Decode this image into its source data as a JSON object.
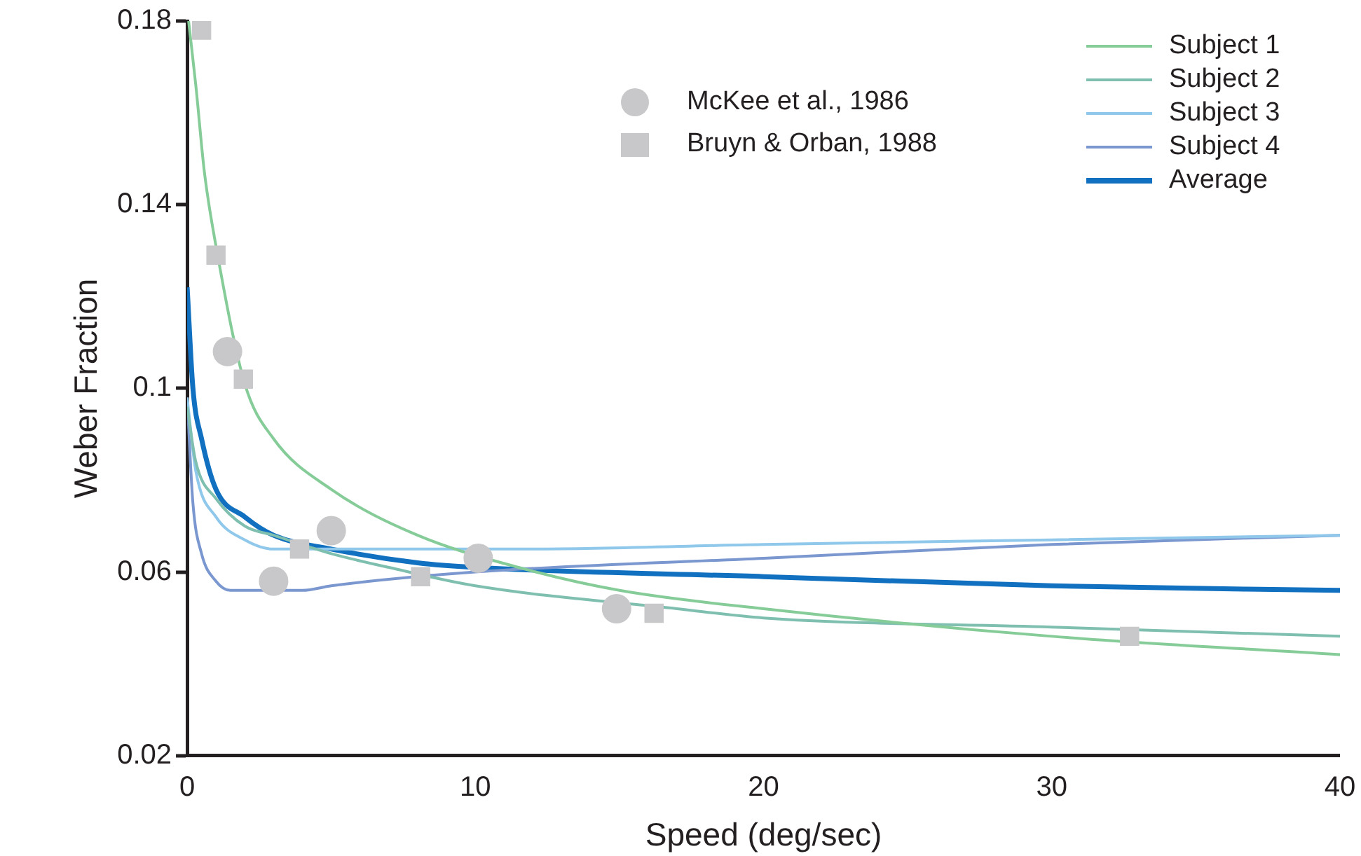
{
  "chart_data": {
    "type": "line",
    "xlabel": "Speed (deg/sec)",
    "ylabel": "Weber Fraction",
    "xlim": [
      0,
      40
    ],
    "xticks": [
      0,
      10,
      20,
      30,
      40
    ],
    "ylim": [
      0.02,
      0.18
    ],
    "yticks": [
      0.02,
      0.06,
      0.1,
      0.14,
      0.18
    ],
    "grid": false,
    "legend": "top right",
    "series": [
      {
        "name": "McKee et al., 1986",
        "type": "scatter",
        "marker": "circle",
        "color": "#c8c8ca",
        "x": [
          1.4,
          3.0,
          5.0,
          10.1,
          14.9
        ],
        "values": [
          0.108,
          0.058,
          0.069,
          0.063,
          0.052
        ]
      },
      {
        "name": "Bruyn & Orban, 1988",
        "type": "scatter",
        "marker": "square",
        "color": "#c8c8ca",
        "x": [
          0.5,
          1.0,
          1.95,
          3.9,
          8.1,
          16.2,
          32.7
        ],
        "values": [
          0.178,
          0.129,
          0.102,
          0.065,
          0.059,
          0.051,
          0.046
        ]
      },
      {
        "name": "Subject 1",
        "color": "#86cc98",
        "x": [
          0.05,
          0.3,
          0.6,
          1,
          2,
          3,
          5,
          8,
          11.5,
          15,
          20,
          30,
          40
        ],
        "values": [
          0.18,
          0.166,
          0.147,
          0.131,
          0.101,
          0.089,
          0.078,
          0.068,
          0.061,
          0.056,
          0.052,
          0.046,
          0.042
        ]
      },
      {
        "name": "Subject 2",
        "color": "#7fbfb0",
        "x": [
          0,
          0.3,
          1,
          2,
          3,
          5,
          7,
          10,
          17,
          20,
          30,
          40
        ],
        "values": [
          0.096,
          0.084,
          0.076,
          0.07,
          0.068,
          0.064,
          0.061,
          0.057,
          0.052,
          0.05,
          0.048,
          0.046
        ]
      },
      {
        "name": "Subject 3",
        "color": "#8fc8ea",
        "x": [
          0,
          0.3,
          1,
          2,
          3,
          5,
          12,
          20,
          30,
          40
        ],
        "values": [
          0.098,
          0.082,
          0.072,
          0.067,
          0.065,
          0.065,
          0.065,
          0.066,
          0.067,
          0.068
        ]
      },
      {
        "name": "Subject 4",
        "color": "#7b97cf",
        "x": [
          0,
          0.2,
          0.5,
          1,
          1.5,
          2,
          4,
          5,
          10,
          20,
          30,
          40
        ],
        "values": [
          0.098,
          0.075,
          0.064,
          0.058,
          0.056,
          0.056,
          0.056,
          0.057,
          0.06,
          0.063,
          0.066,
          0.068
        ]
      },
      {
        "name": "Average",
        "color": "#1170c0",
        "x": [
          0,
          0.2,
          0.5,
          1,
          2,
          3,
          5,
          8,
          10,
          20,
          30,
          40
        ],
        "values": [
          0.122,
          0.1,
          0.089,
          0.078,
          0.072,
          0.068,
          0.065,
          0.062,
          0.061,
          0.059,
          0.057,
          0.056
        ]
      }
    ]
  }
}
